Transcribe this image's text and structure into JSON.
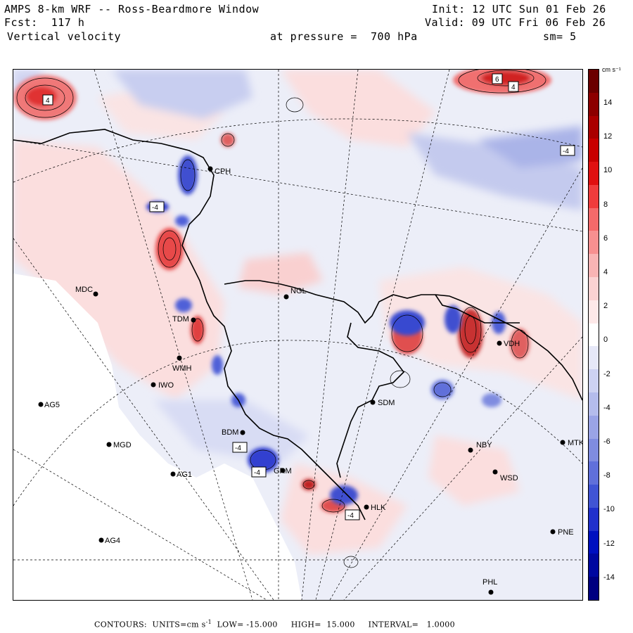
{
  "header": {
    "title": "AMPS 8-km WRF -- Ross-Beardmore Window",
    "forecast": "Fcst:  117 h",
    "variable": "Vertical velocity",
    "init": "Init: 12 UTC Sun 01 Feb 26",
    "valid": "Valid: 09 UTC Fri 06 Feb 26",
    "pressure": "at pressure =  700 hPa",
    "smoothing": "sm= 5"
  },
  "colorbar": {
    "units": "cm s⁻¹",
    "ticks": [
      "14",
      "12",
      "10",
      "8",
      "6",
      "4",
      "2",
      "0",
      "-2",
      "-4",
      "-6",
      "-8",
      "-10",
      "-12",
      "-14"
    ],
    "colors": [
      "#6b0000",
      "#8c0000",
      "#aa0000",
      "#c80000",
      "#e01010",
      "#f03c3c",
      "#f46a6a",
      "#f79090",
      "#f9b4b4",
      "#fbd2d2",
      "#fde8e8",
      "#ffffff",
      "#e6e8f8",
      "#cdd2f2",
      "#b4bcec",
      "#9aa4e6",
      "#7f8ce0",
      "#6070da",
      "#4054d4",
      "#2030cc",
      "#0010c0",
      "#0008a0",
      "#000080"
    ]
  },
  "stations": [
    {
      "id": "CPH",
      "label": "CPH"
    },
    {
      "id": "NGL",
      "label": "NGL"
    },
    {
      "id": "MDC",
      "label": "MDC"
    },
    {
      "id": "TDM",
      "label": "TDM"
    },
    {
      "id": "WMH",
      "label": "WMH"
    },
    {
      "id": "IWO",
      "label": "IWO"
    },
    {
      "id": "AG5",
      "label": "AG5"
    },
    {
      "id": "MGD",
      "label": "MGD"
    },
    {
      "id": "AG1",
      "label": "AG1"
    },
    {
      "id": "AG4",
      "label": "AG4"
    },
    {
      "id": "SDM",
      "label": "SDM"
    },
    {
      "id": "BDM",
      "label": "BDM"
    },
    {
      "id": "GRM",
      "label": "GRM"
    },
    {
      "id": "HLK",
      "label": "HLK"
    },
    {
      "id": "NBY",
      "label": "NBY"
    },
    {
      "id": "WSD",
      "label": "WSD"
    },
    {
      "id": "MTK",
      "label": "MTK"
    },
    {
      "id": "PNE",
      "label": "PNE"
    },
    {
      "id": "PHL",
      "label": "PHL"
    },
    {
      "id": "VDH",
      "label": "VDH"
    }
  ],
  "contour_labels": {
    "pos4": "4",
    "neg4": "-4",
    "pos6": "6"
  },
  "footer": {
    "text_prefix": "CONTOURS:  UNITS=cm s",
    "units_exp": "-1",
    "text_suffix": "  LOW= -15.000     HIGH=  15.000     INTERVAL=   1.0000"
  }
}
